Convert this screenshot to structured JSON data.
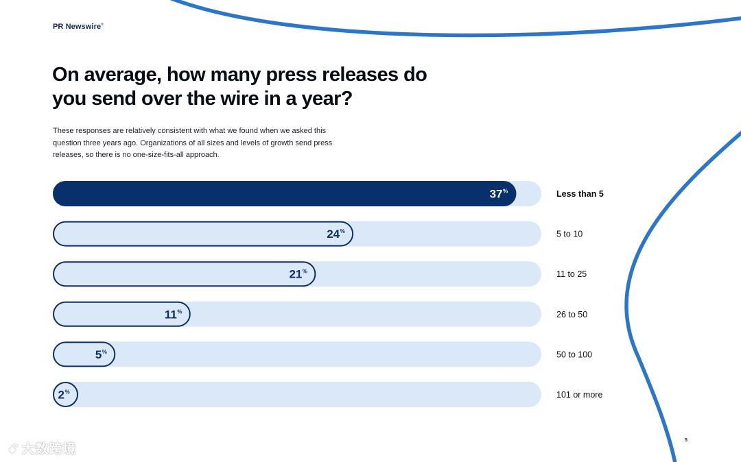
{
  "brand": {
    "name": "PR Newswire",
    "mark": "®"
  },
  "title": "On average, how many press releases do you send over the wire in a year?",
  "subtitle": "These responses are relatively consistent with what we found when we asked this question three years ago. Organizations of all sizes and levels of growth send press releases, so there is no one-size-fits-all approach.",
  "page_number": "5",
  "watermark": {
    "icon": "ꗃ",
    "text": "大数跨境"
  },
  "colors": {
    "highlight_fill": "#08306b",
    "bar_fill": "#dbe8f7",
    "bar_stroke": "#0f2f62",
    "accent_curve": "#2c76c9"
  },
  "chart_data": {
    "type": "bar",
    "orientation": "horizontal",
    "categories": [
      "Less than 5",
      "5 to 10",
      "11 to 25",
      "26 to 50",
      "50 to 100",
      "101 or more"
    ],
    "values": [
      37,
      24,
      21,
      11,
      5,
      2
    ],
    "value_labels": [
      "37",
      "24",
      "21",
      "11",
      "5",
      "2"
    ],
    "unit": "%",
    "highlighted_index": 0,
    "xlim": [
      0,
      39
    ],
    "title": "",
    "xlabel": "",
    "ylabel": "",
    "grid": false,
    "legend": "none"
  }
}
